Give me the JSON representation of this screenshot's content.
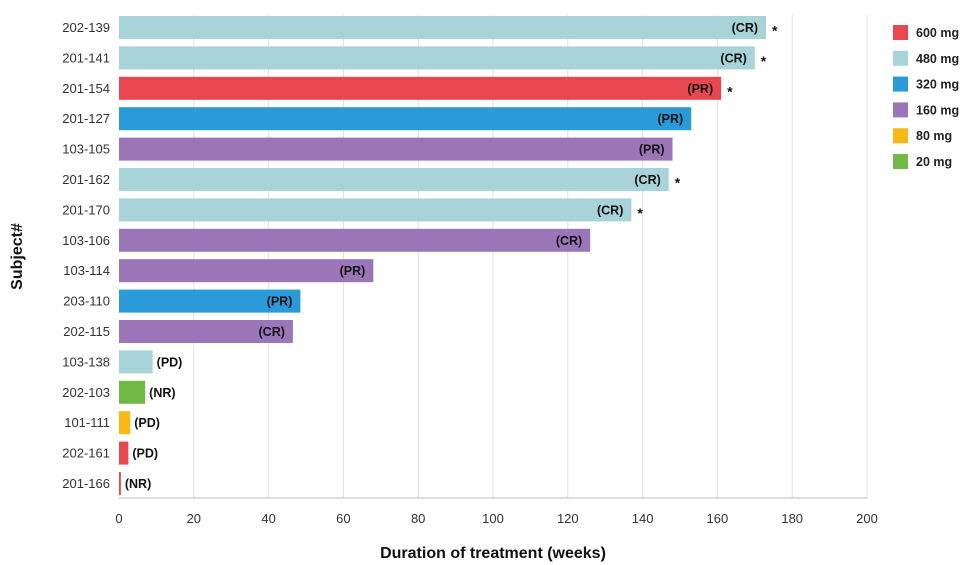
{
  "chart_data": {
    "type": "bar",
    "orientation": "horizontal",
    "xlabel": "Duration of treatment (weeks)",
    "ylabel": "Subject#",
    "xlim": [
      0,
      200
    ],
    "xticks": [
      0,
      20,
      40,
      60,
      80,
      100,
      120,
      140,
      160,
      180,
      200
    ],
    "grid": "vertical",
    "legend_position": "top-right",
    "legend": [
      {
        "label": "600 mg",
        "color": "#e8474f"
      },
      {
        "label": "480 mg",
        "color": "#a8d3d9"
      },
      {
        "label": "320 mg",
        "color": "#2a9ad8"
      },
      {
        "label": "160 mg",
        "color": "#9a76b8"
      },
      {
        "label": "80 mg",
        "color": "#f9b813"
      },
      {
        "label": "20 mg",
        "color": "#6fb944"
      }
    ],
    "bars": [
      {
        "subject": "202-139",
        "weeks": 173,
        "dose": "480 mg",
        "response": "(CR)",
        "star": true
      },
      {
        "subject": "201-141",
        "weeks": 170,
        "dose": "480 mg",
        "response": "(CR)",
        "star": true
      },
      {
        "subject": "201-154",
        "weeks": 161,
        "dose": "600 mg",
        "response": "(PR)",
        "star": true
      },
      {
        "subject": "201-127",
        "weeks": 153,
        "dose": "320 mg",
        "response": "(PR)",
        "star": false
      },
      {
        "subject": "103-105",
        "weeks": 148,
        "dose": "160 mg",
        "response": "(PR)",
        "star": false
      },
      {
        "subject": "201-162",
        "weeks": 147,
        "dose": "480 mg",
        "response": "(CR)",
        "star": true
      },
      {
        "subject": "201-170",
        "weeks": 137,
        "dose": "480 mg",
        "response": "(CR)",
        "star": true
      },
      {
        "subject": "103-106",
        "weeks": 126,
        "dose": "160 mg",
        "response": "(CR)",
        "star": false
      },
      {
        "subject": "103-114",
        "weeks": 68,
        "dose": "160 mg",
        "response": "(PR)",
        "star": false
      },
      {
        "subject": "203-110",
        "weeks": 48.5,
        "dose": "320 mg",
        "response": "(PR)",
        "star": false
      },
      {
        "subject": "202-115",
        "weeks": 46.5,
        "dose": "160 mg",
        "response": "(CR)",
        "star": false
      },
      {
        "subject": "103-138",
        "weeks": 9,
        "dose": "480 mg",
        "response": "(PD)",
        "star": false
      },
      {
        "subject": "202-103",
        "weeks": 7,
        "dose": "20 mg",
        "response": "(NR)",
        "star": false
      },
      {
        "subject": "101-111",
        "weeks": 3,
        "dose": "80 mg",
        "response": "(PD)",
        "star": false
      },
      {
        "subject": "202-161",
        "weeks": 2.5,
        "dose": "600 mg",
        "response": "(PD)",
        "star": false
      },
      {
        "subject": "201-166",
        "weeks": 0.5,
        "dose": "600 mg",
        "response": "(NR)",
        "star": false
      }
    ],
    "star_symbol": "*"
  }
}
